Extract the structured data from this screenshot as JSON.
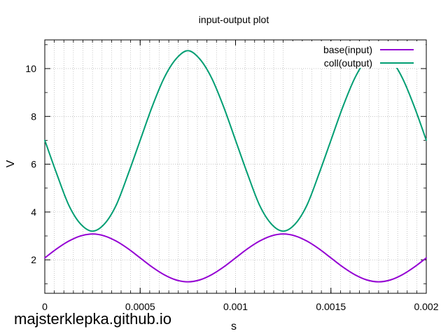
{
  "chart_data": {
    "type": "line",
    "title": "input-output plot",
    "xlabel": "s",
    "ylabel": "V",
    "xlim": [
      0,
      0.002
    ],
    "ylim": [
      0.6,
      11.2
    ],
    "xticks": [
      {
        "value": 0,
        "label": "0"
      },
      {
        "value": 0.0005,
        "label": "0.0005"
      },
      {
        "value": 0.001,
        "label": "0.001"
      },
      {
        "value": 0.0015,
        "label": "0.0015"
      },
      {
        "value": 0.002,
        "label": "0.002"
      }
    ],
    "yticks": [
      {
        "value": 2,
        "label": "2"
      },
      {
        "value": 4,
        "label": "4"
      },
      {
        "value": 6,
        "label": "6"
      },
      {
        "value": 8,
        "label": "8"
      },
      {
        "value": 10,
        "label": "10"
      }
    ],
    "grid": true,
    "legend": "top-right",
    "series": [
      {
        "name": "base(input)",
        "color": "#9400d3",
        "x": [
          0,
          6.25e-05,
          0.000125,
          0.0001875,
          0.00025,
          0.0003125,
          0.000375,
          0.0004375,
          0.0005,
          0.0005625,
          0.000625,
          0.0006875,
          0.00075,
          0.0008125,
          0.000875,
          0.0009375,
          0.001,
          0.0010625,
          0.001125,
          0.0011875,
          0.00125,
          0.0013125,
          0.001375,
          0.0014375,
          0.0015,
          0.0015625,
          0.001625,
          0.0016875,
          0.00175,
          0.0018125,
          0.001875,
          0.0019375,
          0.002
        ],
        "y": [
          2.08,
          2.46,
          2.78,
          3.0,
          3.08,
          3.0,
          2.78,
          2.46,
          2.08,
          1.7,
          1.38,
          1.16,
          1.08,
          1.16,
          1.38,
          1.7,
          2.08,
          2.46,
          2.78,
          3.0,
          3.08,
          3.0,
          2.78,
          2.46,
          2.08,
          1.7,
          1.38,
          1.16,
          1.08,
          1.16,
          1.38,
          1.7,
          2.08
        ]
      },
      {
        "name": "coll(output)",
        "color": "#009e73",
        "x": [
          0,
          6.25e-05,
          0.000125,
          0.0001875,
          0.00025,
          0.0003125,
          0.000375,
          0.0004375,
          0.0005,
          0.0005625,
          0.000625,
          0.0006875,
          0.00075,
          0.0008125,
          0.000875,
          0.0009375,
          0.001,
          0.0010625,
          0.001125,
          0.0011875,
          0.00125,
          0.0013125,
          0.001375,
          0.0014375,
          0.0015,
          0.0015625,
          0.001625,
          0.0016875,
          0.00175,
          0.0018125,
          0.001875,
          0.0019375,
          0.002
        ],
        "y": [
          7.0,
          5.6,
          4.3,
          3.5,
          3.2,
          3.5,
          4.3,
          5.6,
          7.0,
          8.4,
          9.6,
          10.4,
          10.75,
          10.4,
          9.6,
          8.4,
          7.0,
          5.6,
          4.3,
          3.5,
          3.2,
          3.5,
          4.3,
          5.6,
          7.0,
          8.4,
          9.6,
          10.4,
          10.75,
          10.4,
          9.6,
          8.4,
          7.0
        ]
      }
    ]
  },
  "footer": {
    "text": "majsterklepka.github.io"
  }
}
